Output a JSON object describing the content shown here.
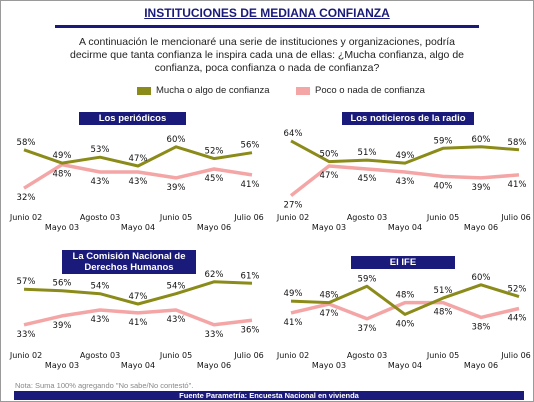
{
  "header": {
    "title": "INSTITUCIONES DE MEDIANA CONFIANZA",
    "question_line1": "A continuación le mencionaré una serie de instituciones y organizaciones, podría",
    "question_line2": "decirme que tanta confianza le inspira cada una de ellas: ¿Mucha confianza, algo de",
    "question_line3": "confianza, poca confianza o nada de confianza?"
  },
  "legend": {
    "high": "Mucha o algo de confianza",
    "low": "Poco o nada de confianza"
  },
  "colors": {
    "high": "#8b8b1a",
    "low": "#f4a6a6",
    "chip_bg": "#1a1a7a"
  },
  "chart_data": [
    {
      "type": "line",
      "title": "Los periódicos",
      "x": [
        "Junio 02",
        "Mayo 03",
        "Agosto 03",
        "Mayo 04",
        "Junio 05",
        "Mayo 06",
        "Julio 06"
      ],
      "series": [
        {
          "name": "Mucha o algo de confianza",
          "values": [
            58,
            49,
            53,
            47,
            60,
            52,
            56
          ]
        },
        {
          "name": "Poco o nada de confianza",
          "values": [
            32,
            48,
            43,
            43,
            39,
            45,
            41
          ]
        }
      ],
      "ylim": [
        20,
        70
      ]
    },
    {
      "type": "line",
      "title": "Los noticieros de la radio",
      "x": [
        "Junio 02",
        "Mayo 03",
        "Agosto 03",
        "Mayo 04",
        "Junio 05",
        "Mayo 06",
        "Julio 06"
      ],
      "series": [
        {
          "name": "Mucha o algo de confianza",
          "values": [
            64,
            50,
            51,
            49,
            59,
            60,
            58
          ]
        },
        {
          "name": "Poco o nada de confianza",
          "values": [
            27,
            47,
            45,
            43,
            40,
            39,
            41
          ]
        }
      ],
      "ylim": [
        20,
        70
      ]
    },
    {
      "type": "line",
      "title": "La Comisión Nacional de Derechos Humanos",
      "x": [
        "Junio 02",
        "Mayo 03",
        "Agosto 03",
        "Mayo 04",
        "Junio 05",
        "Mayo 06",
        "Julio 06"
      ],
      "series": [
        {
          "name": "Mucha o algo de confianza",
          "values": [
            57,
            56,
            54,
            47,
            54,
            62,
            61
          ]
        },
        {
          "name": "Poco o nada de confianza",
          "values": [
            33,
            39,
            43,
            41,
            43,
            33,
            36
          ]
        }
      ],
      "ylim": [
        20,
        70
      ]
    },
    {
      "type": "line",
      "title": "El IFE",
      "x": [
        "Junio 02",
        "Mayo 03",
        "Agosto 03",
        "Mayo 04",
        "Junio 05",
        "Mayo 06",
        "Julio 06"
      ],
      "series": [
        {
          "name": "Mucha o algo de confianza",
          "values": [
            49,
            48,
            59,
            40,
            51,
            60,
            52
          ]
        },
        {
          "name": "Poco o nada de confianza",
          "values": [
            41,
            47,
            37,
            48,
            48,
            38,
            44
          ]
        }
      ],
      "ylim": [
        20,
        70
      ]
    }
  ],
  "note": "Nota: Suma 100% agregando \"No sabe/No contestó\".",
  "footer": "Fuente Parametría: Encuesta Nacional en vivienda"
}
